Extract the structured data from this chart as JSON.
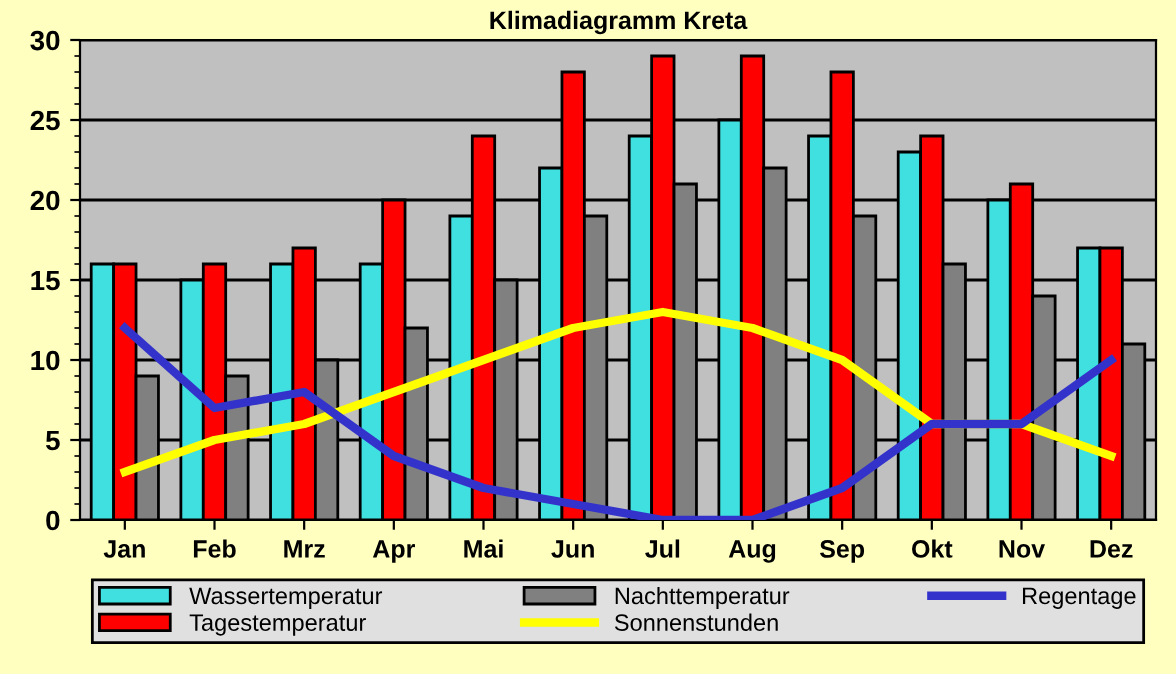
{
  "chart_data": {
    "type": "bar",
    "title": "Klimadiagramm Kreta",
    "categories": [
      "Jan",
      "Feb",
      "Mrz",
      "Apr",
      "Mai",
      "Jun",
      "Jul",
      "Aug",
      "Sep",
      "Okt",
      "Nov",
      "Dez"
    ],
    "series": [
      {
        "name": "Wassertemperatur",
        "color": "#40e0e0",
        "values": [
          16,
          15,
          16,
          16,
          19,
          22,
          24,
          25,
          24,
          23,
          20,
          17
        ]
      },
      {
        "name": "Tagestemperatur",
        "color": "#ff0000",
        "values": [
          16,
          16,
          17,
          20,
          24,
          28,
          29,
          29,
          28,
          24,
          21,
          17
        ]
      },
      {
        "name": "Nachttemperatur",
        "color": "#808080",
        "values": [
          9,
          9,
          10,
          12,
          15,
          19,
          21,
          22,
          19,
          16,
          14,
          11
        ]
      },
      {
        "name": "Sonnenstunden",
        "type": "line",
        "color": "#ffff00",
        "values": [
          3,
          5,
          6,
          8,
          10,
          12,
          13,
          12,
          10,
          6,
          6,
          4
        ]
      },
      {
        "name": "Regentage",
        "type": "line",
        "color": "#3333cc",
        "values": [
          12,
          7,
          8,
          4,
          2,
          1,
          0,
          0,
          2,
          6,
          6,
          10
        ]
      }
    ],
    "ylim": [
      0,
      30
    ],
    "yticks": [
      0,
      5,
      10,
      15,
      20,
      25,
      30
    ],
    "grid": "y",
    "legend": "bottom"
  }
}
